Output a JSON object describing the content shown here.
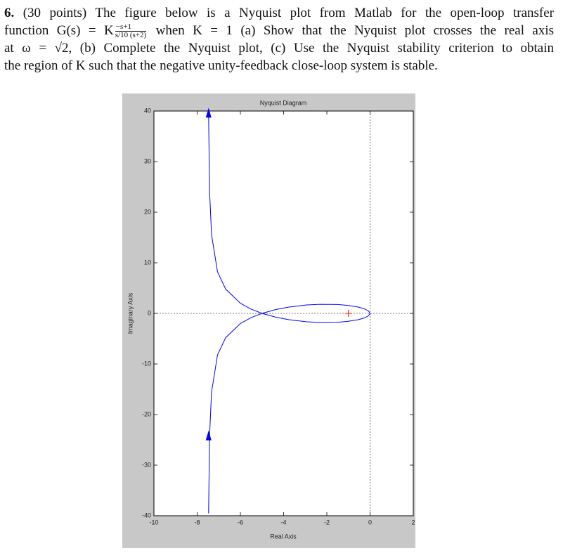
{
  "question": {
    "number": "6.",
    "line1": "(30 points) The figure below is a Nyquist plot from Matlab for the open-loop transfer",
    "line2a": "function G(s) = K",
    "frac_num": "−s+1",
    "frac_den": "s/10 (s+2)",
    "line2b": "when K = 1 (a) Show that the Nyquist plot crosses the real axis",
    "line3": "at ω = √2, (b) Complete the Nyquist plot, (c) Use the Nyquist stability criterion to obtain",
    "line4": "the region of K such that the negative unity-feedback close-loop system is stable."
  },
  "chart_data": {
    "type": "line",
    "title": "Nyquist Diagram",
    "xlabel": "Real Axis",
    "ylabel": "Imaginary Axis",
    "xlim": [
      -10,
      2
    ],
    "xticks": [
      -10,
      -8,
      -6,
      -4,
      -2,
      0,
      2
    ],
    "ylim": [
      -40,
      40
    ],
    "yticks": [
      -40,
      -30,
      -20,
      -10,
      0,
      10,
      20,
      30,
      40
    ],
    "series": [
      {
        "color": "#0000ff",
        "x": [
          -7.471,
          -7.426,
          -7.335,
          -7.059,
          -6.682,
          -6,
          -5.515,
          -5,
          -4.354,
          -3.75,
          -2.927,
          -2.308,
          -1.5,
          -1.034,
          -0.566,
          -0.288,
          -0.074,
          0
        ],
        "values": [
          -39.53,
          -24.26,
          -15.57,
          -8.235,
          -4.804,
          -2,
          -0.858,
          0,
          0.76,
          1.25,
          1.659,
          1.795,
          1.75,
          1.586,
          1.267,
          0.942,
          0.493,
          0
        ]
      },
      {
        "color": "#0000ff",
        "x": [
          0,
          -0.074,
          -0.288,
          -0.566,
          -1.034,
          -1.5,
          -2.308,
          -2.927,
          -3.75,
          -4.354,
          -5,
          -5.515,
          -6,
          -6.682,
          -7.059,
          -7.335,
          -7.426,
          -7.471
        ],
        "values": [
          0,
          -0.493,
          -0.942,
          -1.267,
          -1.586,
          -1.75,
          -1.795,
          -1.659,
          -1.25,
          -0.76,
          0,
          0.858,
          2,
          4.804,
          8.235,
          15.57,
          24.26,
          39.53
        ]
      },
      {
        "color": "#ff0000",
        "marker": "+",
        "x": [
          -1
        ],
        "values": [
          0
        ]
      }
    ]
  }
}
